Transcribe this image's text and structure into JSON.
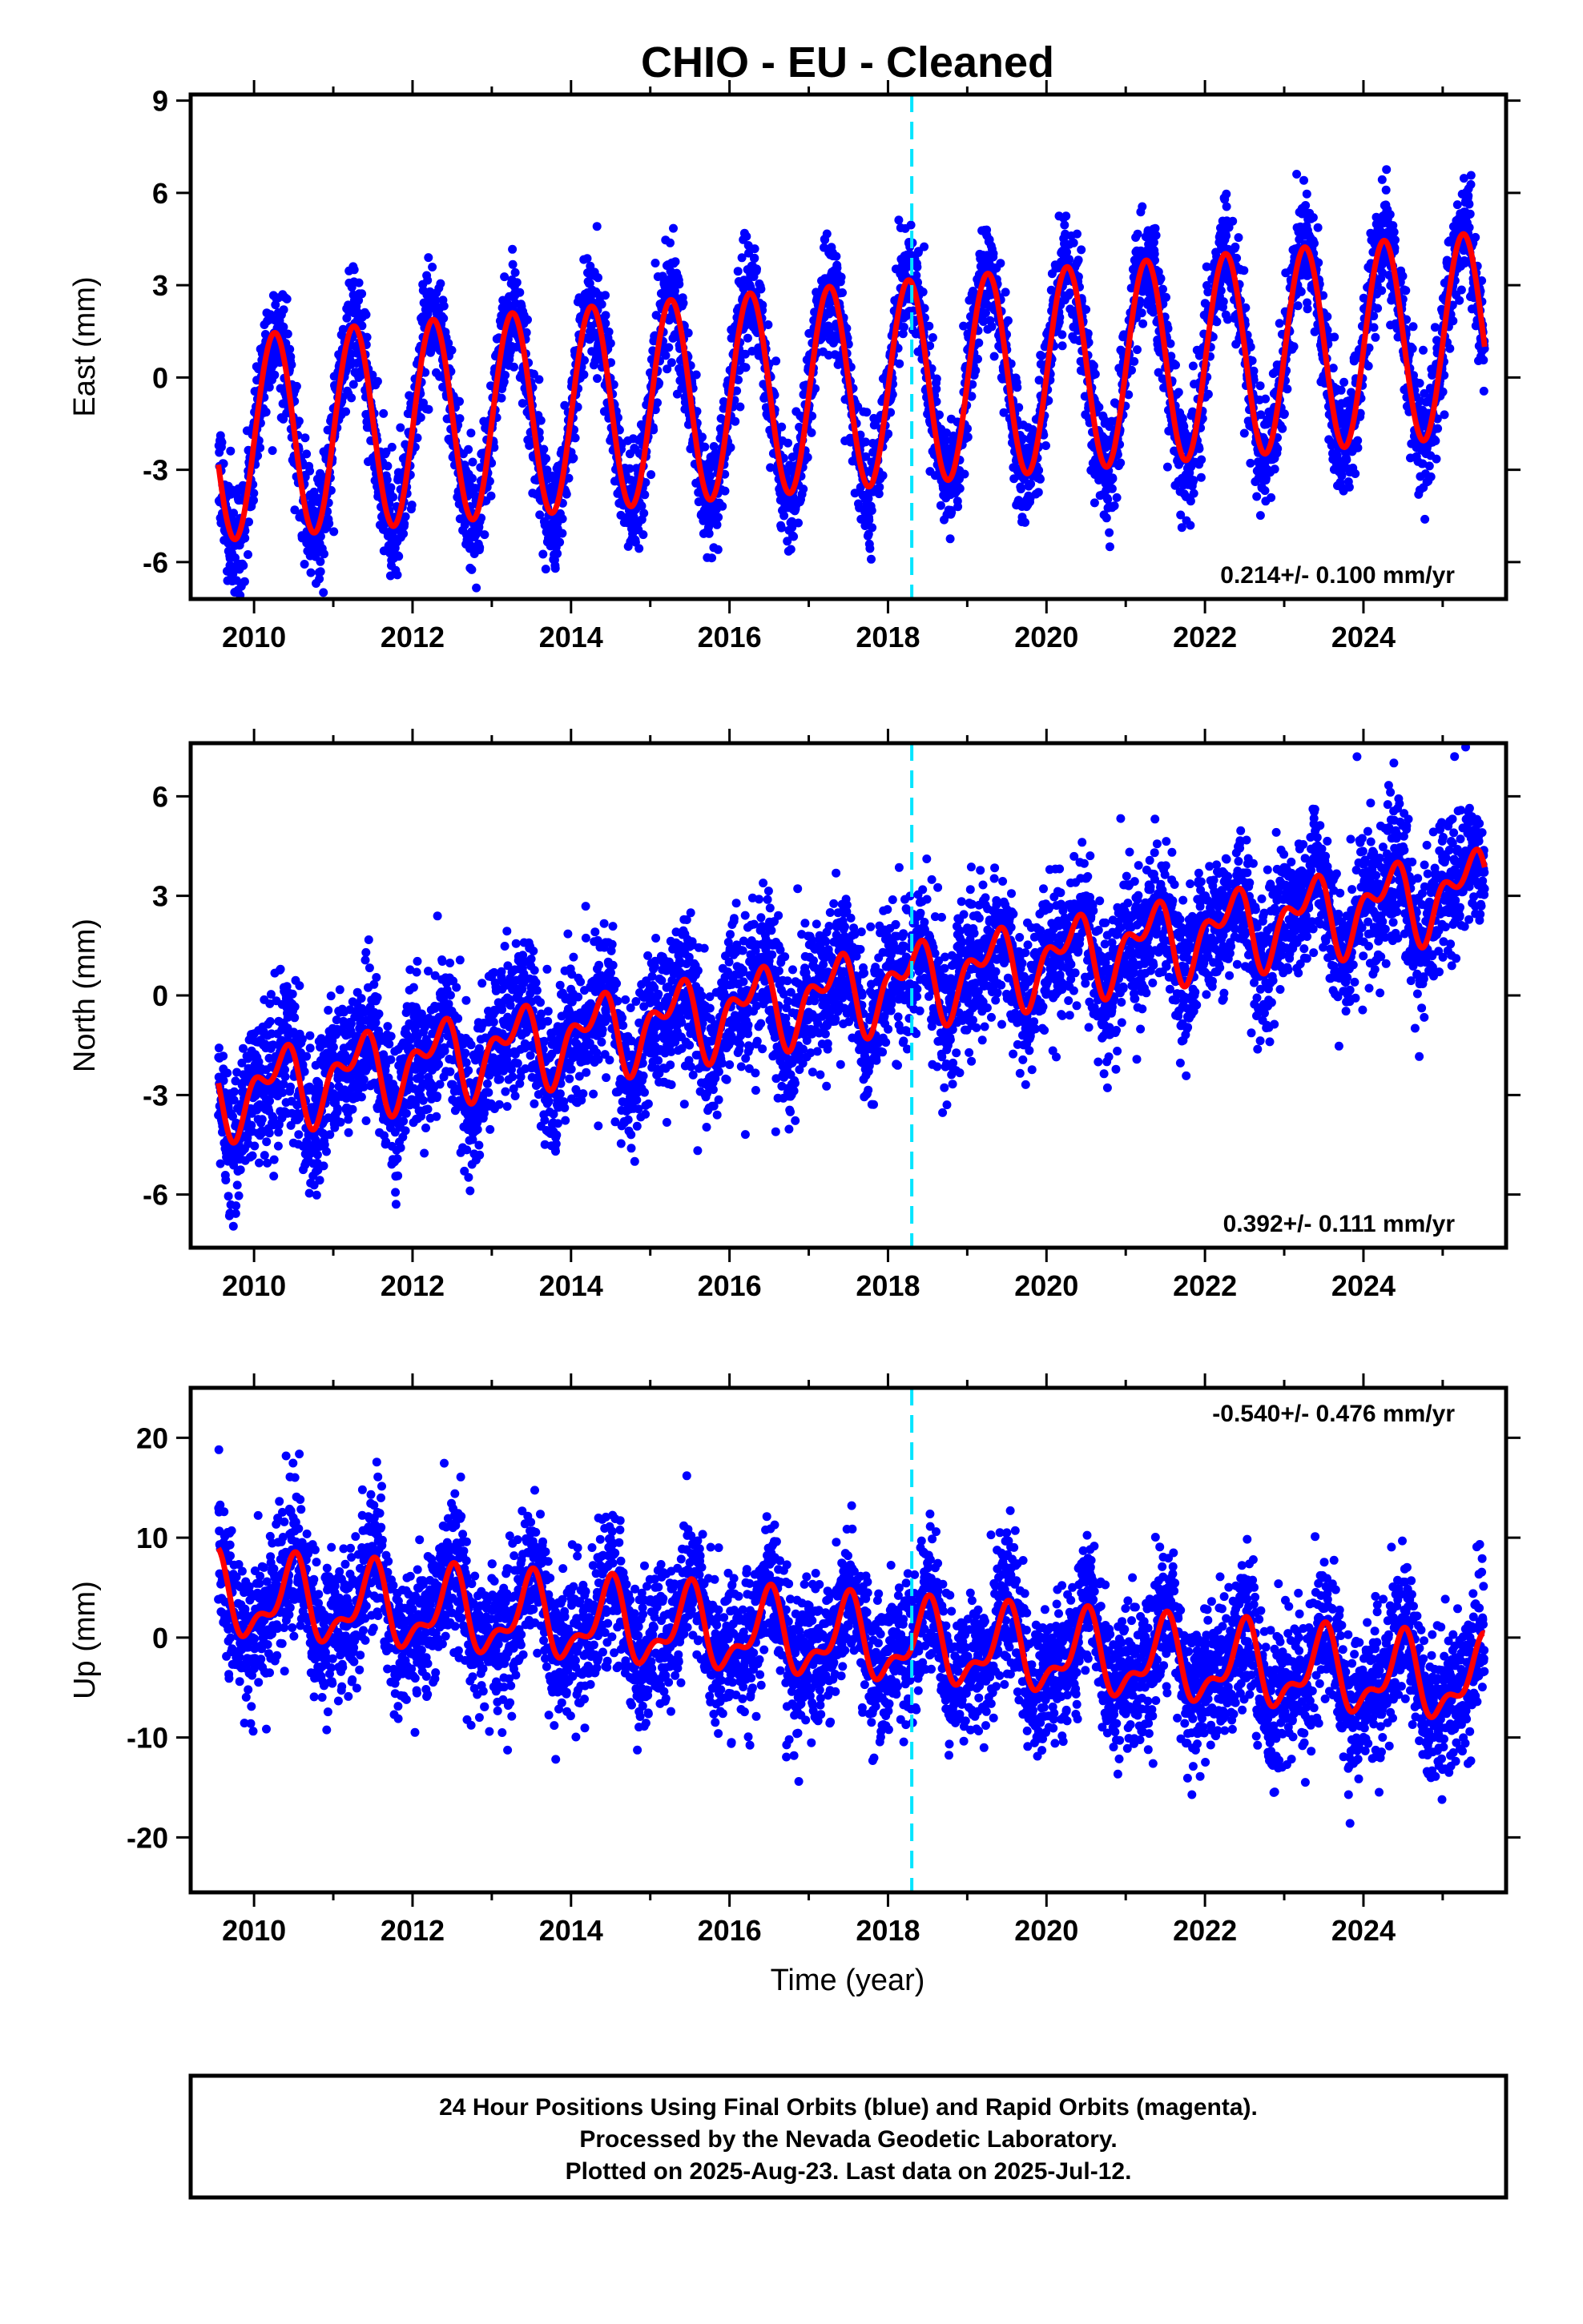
{
  "page": {
    "footer_lines": [
      "24 Hour Positions Using Final Orbits (blue) and Rapid Orbits (magenta).",
      "Processed by the Nevada Geodetic Laboratory.",
      "Plotted on 2025-Aug-23. Last data on 2025-Jul-12."
    ]
  },
  "chart_data": [
    {
      "type": "scatter",
      "title": "CHIO  - EU - Cleaned",
      "ylabel": "East (mm)",
      "xlabel": "",
      "xlim": [
        2009.2,
        2025.8
      ],
      "ylim": [
        -7.2,
        9.2
      ],
      "xticks": [
        2010,
        2012,
        2014,
        2016,
        2018,
        2020,
        2022,
        2024
      ],
      "yticks": [
        -6,
        -3,
        0,
        3,
        6,
        9
      ],
      "rate_label": "0.214+/- 0.100 mm/yr",
      "rate_position": "bottom-right",
      "event_line_x": 2018.3,
      "data_start": 2009.55,
      "data_end": 2025.53,
      "model": {
        "offset": -0.3,
        "trend_mm_per_yr": 0.214,
        "ref_epoch": 2017.5,
        "annual_cos": -0.2,
        "annual_sin": 3.3,
        "noise_sd": 0.9
      },
      "colors": {
        "points": "#0000ff",
        "fit": "#ff0000",
        "event_line": "#00e5ff"
      }
    },
    {
      "type": "scatter",
      "title": "",
      "ylabel": "North (mm)",
      "xlabel": "",
      "xlim": [
        2009.2,
        2025.8
      ],
      "ylim": [
        -7.6,
        7.6
      ],
      "xticks": [
        2010,
        2012,
        2014,
        2016,
        2018,
        2020,
        2022,
        2024
      ],
      "yticks": [
        -6,
        -3,
        0,
        3,
        6
      ],
      "rate_label": "0.392+/- 0.111 mm/yr",
      "rate_position": "bottom-right",
      "event_line_x": 2018.3,
      "data_start": 2009.55,
      "data_end": 2025.53,
      "model": {
        "offset": 0.1,
        "trend_mm_per_yr": 0.392,
        "ref_epoch": 2017.5,
        "annual_cos": -0.3,
        "annual_sin": 0.9,
        "semiannual_cos": 0.6,
        "semiannual_sin": -0.2,
        "noise_sd": 1.1
      },
      "colors": {
        "points": "#0000ff",
        "fit": "#ff0000",
        "event_line": "#00e5ff"
      }
    },
    {
      "type": "scatter",
      "title": "",
      "ylabel": "Up (mm)",
      "xlabel": "Time (year)",
      "xlim": [
        2009.2,
        2025.8
      ],
      "ylim": [
        -25.5,
        25
      ],
      "xticks": [
        2010,
        2012,
        2014,
        2016,
        2018,
        2020,
        2022,
        2024
      ],
      "yticks": [
        -20,
        -10,
        0,
        10,
        20
      ],
      "rate_label": "-0.540+/- 0.476 mm/yr",
      "rate_position": "top-right",
      "event_line_x": 2018.3,
      "data_start": 2009.55,
      "data_end": 2025.53,
      "model": {
        "offset": -0.3,
        "trend_mm_per_yr": -0.54,
        "ref_epoch": 2017.5,
        "annual_cos": -3.5,
        "annual_sin": 0.4,
        "semiannual_cos": 1.5,
        "semiannual_sin": 0.9,
        "noise_sd": 3.6
      },
      "colors": {
        "points": "#0000ff",
        "fit": "#ff0000",
        "event_line": "#00e5ff"
      }
    }
  ]
}
